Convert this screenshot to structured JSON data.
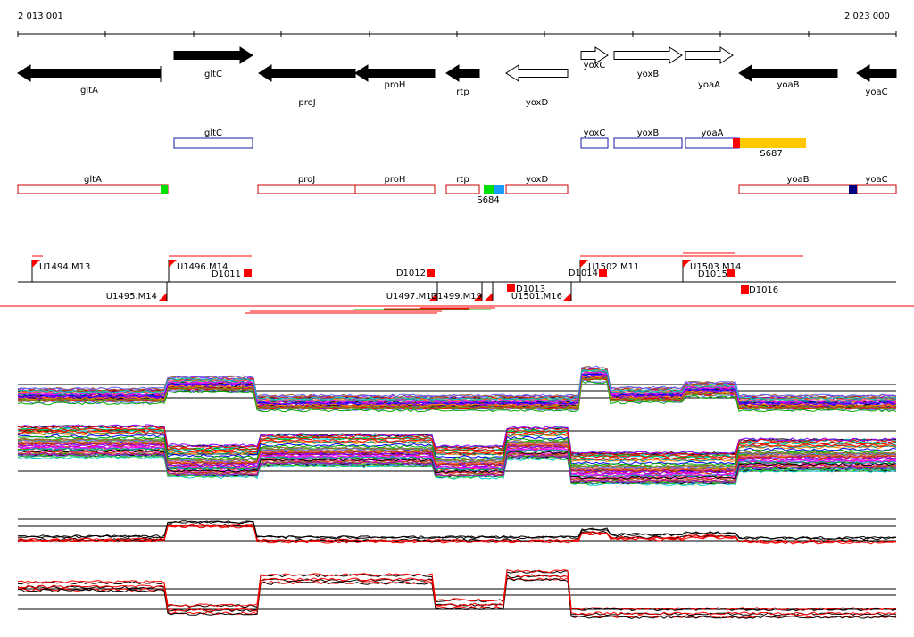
{
  "ruler": {
    "start_label": "2 013 001",
    "end_label": "2 023 000"
  },
  "colors": {
    "gene_filled": "#000000",
    "gene_outline_blue": "#1a1aa6",
    "operon_outline_red": "#cc0000",
    "segment_yellow": "#ffc800",
    "segment_red": "#ff0000",
    "segment_green": "#00e000",
    "segment_blue": "#1a9cff",
    "segment_navy": "#000080",
    "black_line": "#000000",
    "red_line": "#ff0000"
  },
  "genes": [
    {
      "name": "gltA",
      "strand": "-",
      "filled": true,
      "label_below": true
    },
    {
      "name": "gltC",
      "strand": "+",
      "filled": true,
      "label_below": false
    },
    {
      "name": "proJ",
      "strand": "-",
      "filled": true,
      "label_below": true
    },
    {
      "name": "proH",
      "strand": "-",
      "filled": true,
      "label_below": false
    },
    {
      "name": "rtp",
      "strand": "-",
      "filled": true,
      "label_below": true
    },
    {
      "name": "yoxD",
      "strand": "-",
      "filled": false,
      "label_below": true
    },
    {
      "name": "yoxC",
      "strand": "+",
      "filled": false,
      "label_below": false
    },
    {
      "name": "yoxB",
      "strand": "+",
      "filled": false,
      "label_below": false
    },
    {
      "name": "yoaA",
      "strand": "+",
      "filled": false,
      "label_below": true
    },
    {
      "name": "yoaB",
      "strand": "-",
      "filled": true,
      "label_below": false
    },
    {
      "name": "yoaC",
      "strand": "-",
      "filled": true,
      "label_below": true
    }
  ],
  "blue_track": [
    {
      "label": "gltC"
    },
    {
      "label": "yoxC"
    },
    {
      "label": "yoxB"
    },
    {
      "label": "yoaA"
    }
  ],
  "blue_track_segment_label": "S687",
  "red_track": [
    {
      "label": "gltA"
    },
    {
      "label": "proJ"
    },
    {
      "label": "proH"
    },
    {
      "label": "rtp"
    },
    {
      "label": "yoxD"
    },
    {
      "label": "yoaB"
    },
    {
      "label": "yoaC"
    }
  ],
  "red_track_segment_label": "S684",
  "upper_labels": [
    "U1494.M13",
    "U1496.M14",
    "D1011",
    "D1012",
    "D1014",
    "U1502.M11",
    "U1503.M14",
    "D1015"
  ],
  "lower_labels": [
    "U1495.M14",
    "U1497.M13",
    "U1499.M19",
    "D1013",
    "U1501.M16",
    "D1016"
  ]
}
